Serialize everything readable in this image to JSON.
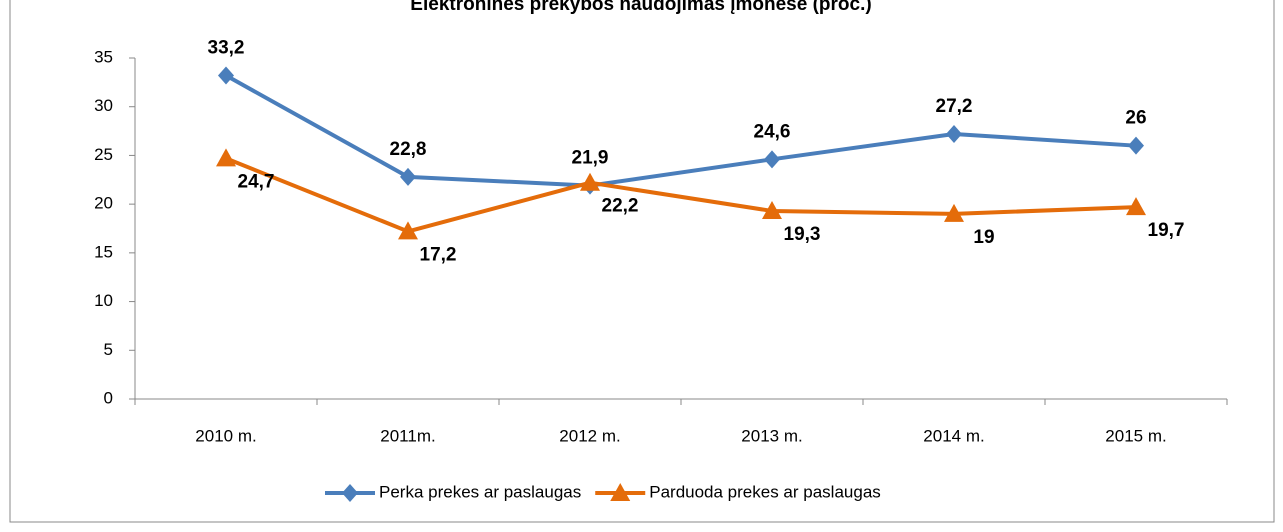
{
  "chart_data": {
    "type": "line",
    "title": "Elektroninės prekybos naudojimas įmonėse (proc.)",
    "categories": [
      "2010 m.",
      "2011m.",
      "2012 m.",
      "2013 m.",
      "2014 m.",
      "2015 m."
    ],
    "series": [
      {
        "name": "Perka prekes ar paslaugas",
        "color": "#4a7ebb",
        "marker": "diamond",
        "values": [
          33.2,
          22.8,
          21.9,
          24.6,
          27.2,
          26
        ],
        "value_labels": [
          "33,2",
          "22,8",
          "21,9",
          "24,6",
          "27,2",
          "26"
        ]
      },
      {
        "name": "Parduoda prekes ar paslaugas",
        "color": "#e46c0a",
        "marker": "triangle",
        "values": [
          24.7,
          17.2,
          22.2,
          19.3,
          19,
          19.7
        ],
        "value_labels": [
          "24,7",
          "17,2",
          "22,2",
          "19,3",
          "19",
          "19,7"
        ]
      }
    ],
    "ylim": [
      0,
      35
    ],
    "yticks": [
      0,
      5,
      10,
      15,
      20,
      25,
      30,
      35
    ],
    "legend": "bottom"
  }
}
